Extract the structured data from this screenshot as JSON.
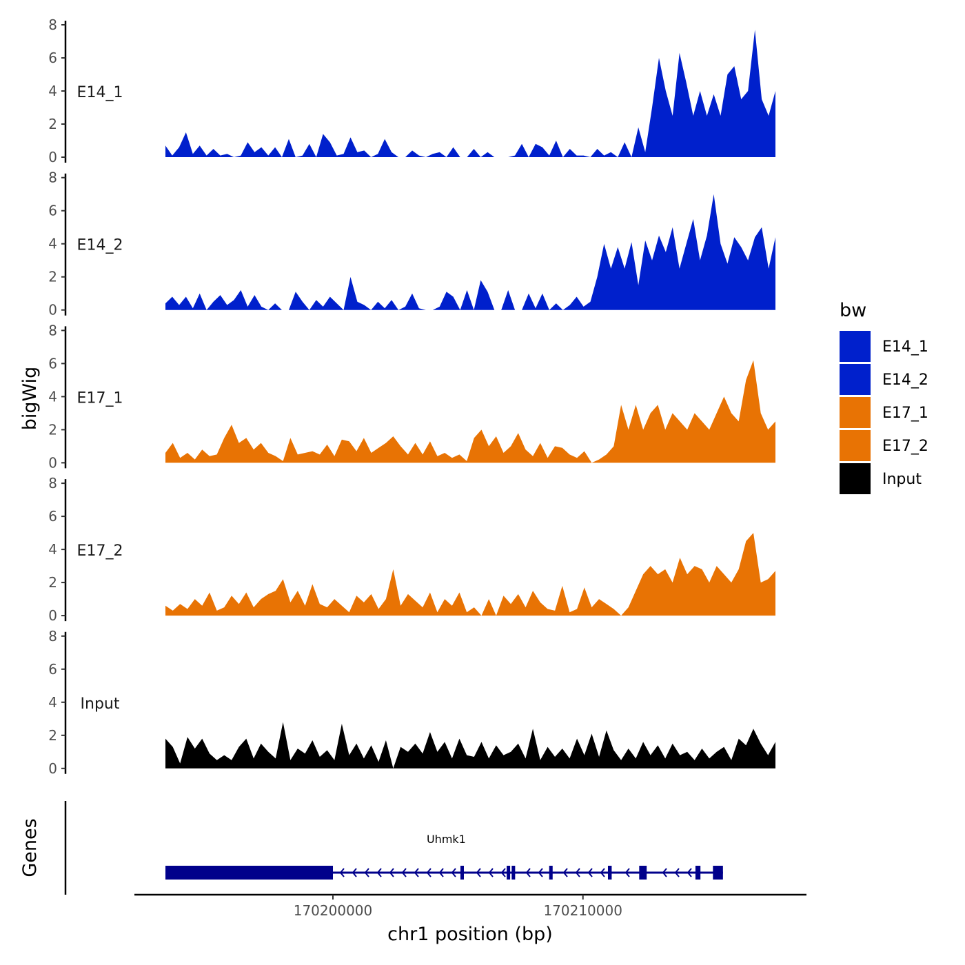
{
  "chart_data": {
    "type": "area",
    "title": "",
    "ylabel": "bigWig",
    "xlabel": "chr1 position (bp)",
    "x_range": [
      170193300,
      170217700
    ],
    "ylim": [
      0,
      8
    ],
    "y_ticks": [
      0,
      2,
      4,
      6,
      8
    ],
    "y_tick_labels": [
      "0",
      "2",
      "4",
      "6",
      "8"
    ],
    "x_ticks": [
      170200000,
      170210000
    ],
    "x_tick_labels": [
      "170200000",
      "170210000"
    ],
    "legend": {
      "title": "bw",
      "position": "right",
      "entries": [
        {
          "label": "E14_1",
          "color": "#0020CC"
        },
        {
          "label": "E14_2",
          "color": "#0020CC"
        },
        {
          "label": "E17_1",
          "color": "#E87304"
        },
        {
          "label": "E17_2",
          "color": "#E87304"
        },
        {
          "label": "Input",
          "color": "#000000"
        }
      ]
    },
    "series": [
      {
        "name": "E14_1",
        "color": "#0020CC",
        "x_start": 170193300,
        "x_end": 170217700,
        "values": [
          0.7,
          0.1,
          0.6,
          1.5,
          0.2,
          0.7,
          0.1,
          0.5,
          0.1,
          0.2,
          0.0,
          0.1,
          0.9,
          0.3,
          0.6,
          0.1,
          0.6,
          0.0,
          1.1,
          0.0,
          0.1,
          0.8,
          0.0,
          1.4,
          0.9,
          0.1,
          0.2,
          1.2,
          0.3,
          0.4,
          0.0,
          0.2,
          1.1,
          0.3,
          0.0,
          0.0,
          0.4,
          0.1,
          0.0,
          0.2,
          0.3,
          0.0,
          0.6,
          0.0,
          0.0,
          0.5,
          0.0,
          0.3,
          0.0,
          0.0,
          0.0,
          0.1,
          0.8,
          0.0,
          0.8,
          0.6,
          0.1,
          1.0,
          0.0,
          0.5,
          0.1,
          0.1,
          0.0,
          0.5,
          0.1,
          0.3,
          0.0,
          0.9,
          0.0,
          1.8,
          0.3,
          3.0,
          6.0,
          4.0,
          2.5,
          6.3,
          4.5,
          2.5,
          4.0,
          2.5,
          3.8,
          2.5,
          5.0,
          5.5,
          3.5,
          4.0,
          7.7,
          3.5,
          2.5,
          4.0
        ]
      },
      {
        "name": "E14_2",
        "color": "#0020CC",
        "x_start": 170193300,
        "x_end": 170217700,
        "values": [
          0.4,
          0.8,
          0.3,
          0.8,
          0.1,
          1.0,
          0.0,
          0.5,
          0.9,
          0.3,
          0.6,
          1.2,
          0.2,
          0.9,
          0.2,
          0.0,
          0.4,
          0.0,
          0.0,
          1.1,
          0.5,
          0.0,
          0.6,
          0.2,
          0.8,
          0.4,
          0.0,
          2.0,
          0.5,
          0.3,
          0.0,
          0.5,
          0.1,
          0.6,
          0.0,
          0.2,
          1.0,
          0.1,
          0.0,
          0.0,
          0.2,
          1.1,
          0.8,
          0.0,
          1.2,
          0.0,
          1.8,
          1.1,
          0.0,
          0.0,
          1.2,
          0.0,
          0.0,
          1.0,
          0.1,
          1.0,
          0.0,
          0.4,
          0.0,
          0.3,
          0.8,
          0.2,
          0.5,
          2.0,
          4.0,
          2.5,
          3.8,
          2.5,
          4.1,
          1.5,
          4.2,
          3.0,
          4.5,
          3.5,
          5.0,
          2.5,
          4.0,
          5.5,
          3.0,
          4.5,
          7.0,
          4.0,
          2.8,
          4.4,
          3.8,
          3.0,
          4.4,
          5.0,
          2.5,
          4.4
        ]
      },
      {
        "name": "E17_1",
        "color": "#E87304",
        "x_start": 170193300,
        "x_end": 170217700,
        "values": [
          0.6,
          1.2,
          0.3,
          0.6,
          0.2,
          0.8,
          0.4,
          0.5,
          1.5,
          2.3,
          1.2,
          1.5,
          0.8,
          1.2,
          0.6,
          0.4,
          0.1,
          1.5,
          0.5,
          0.6,
          0.7,
          0.5,
          1.1,
          0.4,
          1.4,
          1.3,
          0.7,
          1.5,
          0.6,
          0.9,
          1.2,
          1.6,
          1.0,
          0.5,
          1.2,
          0.5,
          1.3,
          0.4,
          0.6,
          0.3,
          0.5,
          0.1,
          1.5,
          2.0,
          1.0,
          1.6,
          0.6,
          1.0,
          1.8,
          0.8,
          0.4,
          1.2,
          0.3,
          1.0,
          0.9,
          0.5,
          0.3,
          0.7,
          0.0,
          0.2,
          0.5,
          1.0,
          3.5,
          2.0,
          3.5,
          2.0,
          3.0,
          3.5,
          2.0,
          3.0,
          2.5,
          2.0,
          3.0,
          2.5,
          2.0,
          3.0,
          4.0,
          3.0,
          2.5,
          5.0,
          6.2,
          3.0,
          2.0,
          2.5
        ]
      },
      {
        "name": "E17_2",
        "color": "#E87304",
        "x_start": 170193300,
        "x_end": 170217700,
        "values": [
          0.6,
          0.3,
          0.7,
          0.4,
          1.0,
          0.6,
          1.4,
          0.3,
          0.5,
          1.2,
          0.7,
          1.4,
          0.5,
          1.0,
          1.3,
          1.5,
          2.2,
          0.8,
          1.5,
          0.6,
          1.9,
          0.7,
          0.5,
          1.0,
          0.6,
          0.2,
          1.2,
          0.8,
          1.3,
          0.4,
          1.0,
          2.8,
          0.6,
          1.3,
          0.9,
          0.5,
          1.4,
          0.2,
          1.0,
          0.6,
          1.4,
          0.2,
          0.5,
          0.0,
          1.0,
          0.0,
          1.2,
          0.7,
          1.3,
          0.5,
          1.5,
          0.8,
          0.4,
          0.3,
          1.8,
          0.2,
          0.4,
          1.7,
          0.5,
          1.0,
          0.7,
          0.4,
          0.0,
          0.5,
          1.5,
          2.5,
          3.0,
          2.5,
          2.8,
          2.0,
          3.5,
          2.5,
          3.0,
          2.8,
          2.0,
          3.0,
          2.5,
          2.0,
          2.8,
          4.5,
          5.0,
          2.0,
          2.2,
          2.7
        ]
      },
      {
        "name": "Input",
        "color": "#000000",
        "x_start": 170193300,
        "x_end": 170217700,
        "values": [
          1.8,
          1.3,
          0.3,
          1.9,
          1.2,
          1.8,
          0.9,
          0.5,
          0.8,
          0.5,
          1.3,
          1.8,
          0.6,
          1.5,
          1.0,
          0.6,
          2.8,
          0.5,
          1.2,
          0.9,
          1.7,
          0.7,
          1.1,
          0.5,
          2.7,
          0.8,
          1.5,
          0.6,
          1.4,
          0.4,
          1.7,
          0.0,
          1.3,
          1.0,
          1.5,
          0.9,
          2.2,
          1.0,
          1.6,
          0.6,
          1.8,
          0.8,
          0.7,
          1.6,
          0.6,
          1.4,
          0.8,
          1.0,
          1.5,
          0.6,
          2.4,
          0.5,
          1.3,
          0.7,
          1.2,
          0.6,
          1.8,
          0.8,
          2.1,
          0.7,
          2.3,
          1.1,
          0.5,
          1.2,
          0.6,
          1.6,
          0.8,
          1.4,
          0.6,
          1.5,
          0.8,
          1.0,
          0.5,
          1.2,
          0.6,
          1.0,
          1.3,
          0.5,
          1.8,
          1.4,
          2.4,
          1.5,
          0.8,
          1.6
        ]
      }
    ],
    "genes": {
      "track_label": "Genes",
      "items": [
        {
          "name": "Uhmk1",
          "strand": "-",
          "start": 170193300,
          "end": 170215600,
          "exons": [
            [
              170193300,
              170200000
            ],
            [
              170205100,
              170205200
            ],
            [
              170206950,
              170207050
            ],
            [
              170207150,
              170207250
            ],
            [
              170208650,
              170208750
            ],
            [
              170211000,
              170211150
            ],
            [
              170212250,
              170212550
            ],
            [
              170214500,
              170214700
            ],
            [
              170215200,
              170215600
            ]
          ]
        }
      ]
    }
  }
}
